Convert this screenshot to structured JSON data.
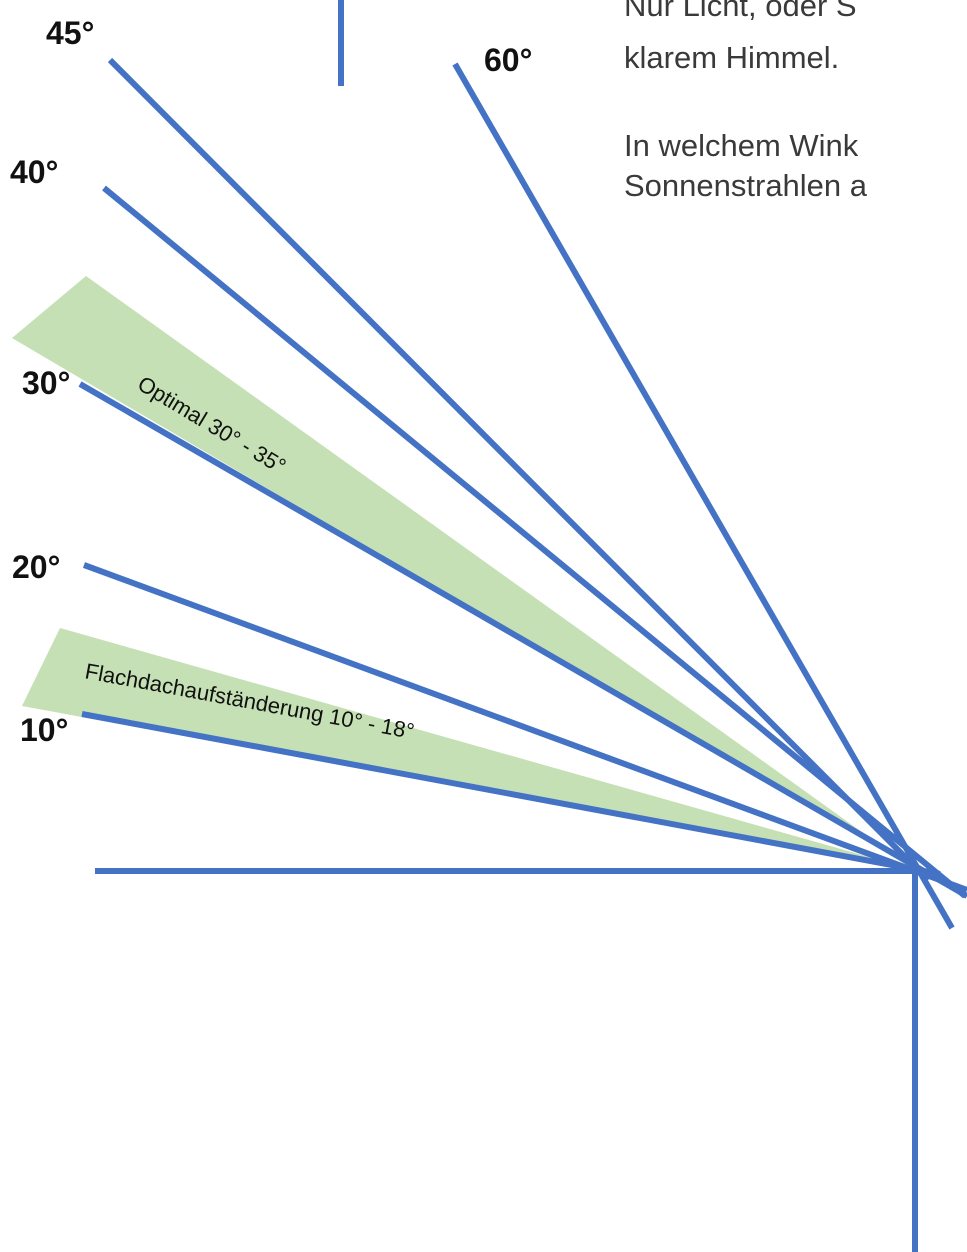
{
  "text": {
    "line1": "Nur Licht, oder S",
    "line2": "klarem Himmel.",
    "line3": "In welchem Wink",
    "line4": "Sonnenstrahlen a"
  },
  "angles": [
    "45°",
    "40°",
    "30°",
    "20°",
    "10°",
    "60°"
  ],
  "bands": {
    "optimal": "Optimal 30° - 35°",
    "flat_roof": "Flachdachaufständerung 10° - 18°"
  },
  "colors": {
    "line": "#4472c4",
    "band": "#c5e0b4",
    "text": "#111111",
    "side_text": "#3a3a3a"
  }
}
